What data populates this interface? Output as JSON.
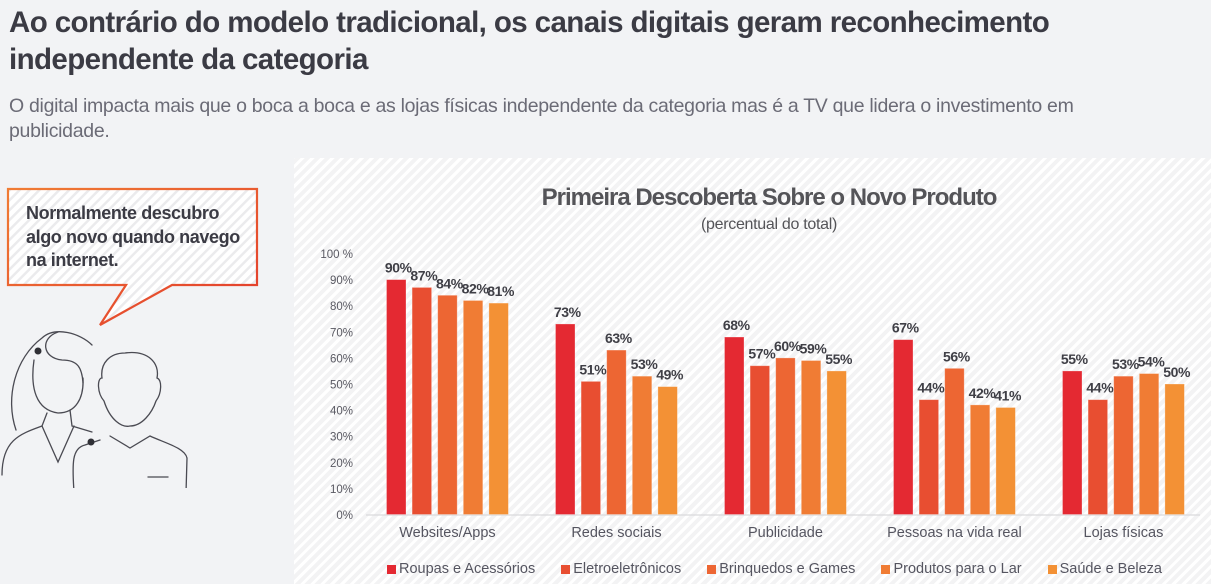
{
  "header": {
    "title": "Ao contrário do modelo tradicional, os canais digitais geram reconhecimento independente da categoria",
    "subtitle": "O digital impacta mais que o boca a boca e as lojas físicas independente da categoria mas é a TV que lidera o investimento em publicidade."
  },
  "callout": {
    "text": "Normalmente descubro algo novo quando navego na internet.",
    "border_color": "#e8542a"
  },
  "illustration": {
    "icon": "people-icon"
  },
  "chart_data": {
    "type": "bar",
    "title": "Primeira Descoberta Sobre o Novo Produto",
    "subtitle": "(percentual do total)",
    "xlabel": "",
    "ylabel": "",
    "ylim": [
      0,
      100
    ],
    "yticks": [
      "0%",
      "10%",
      "20%",
      "30%",
      "40%",
      "50%",
      "60%",
      "70%",
      "80%",
      "90%",
      "100 %"
    ],
    "ytick_values": [
      0,
      10,
      20,
      30,
      40,
      50,
      60,
      70,
      80,
      90,
      100
    ],
    "grid": false,
    "legend_position": "bottom",
    "categories": [
      "Websites/Apps",
      "Redes sociais",
      "Publicidade",
      "Pessoas na vida real",
      "Lojas físicas"
    ],
    "series": [
      {
        "name": "Roupas e Acessórios",
        "color": "#e42932",
        "values": [
          90,
          73,
          68,
          67,
          55
        ]
      },
      {
        "name": "Eletroeletrônicos",
        "color": "#e84e31",
        "values": [
          87,
          51,
          57,
          44,
          44
        ]
      },
      {
        "name": "Brinquedos e Games",
        "color": "#ed6633",
        "values": [
          84,
          63,
          60,
          56,
          53
        ]
      },
      {
        "name": "Produtos para o Lar",
        "color": "#f07c34",
        "values": [
          82,
          53,
          59,
          42,
          54
        ]
      },
      {
        "name": "Saúde e Beleza",
        "color": "#f39135",
        "values": [
          81,
          49,
          55,
          41,
          50
        ]
      }
    ],
    "value_suffix": "%"
  }
}
